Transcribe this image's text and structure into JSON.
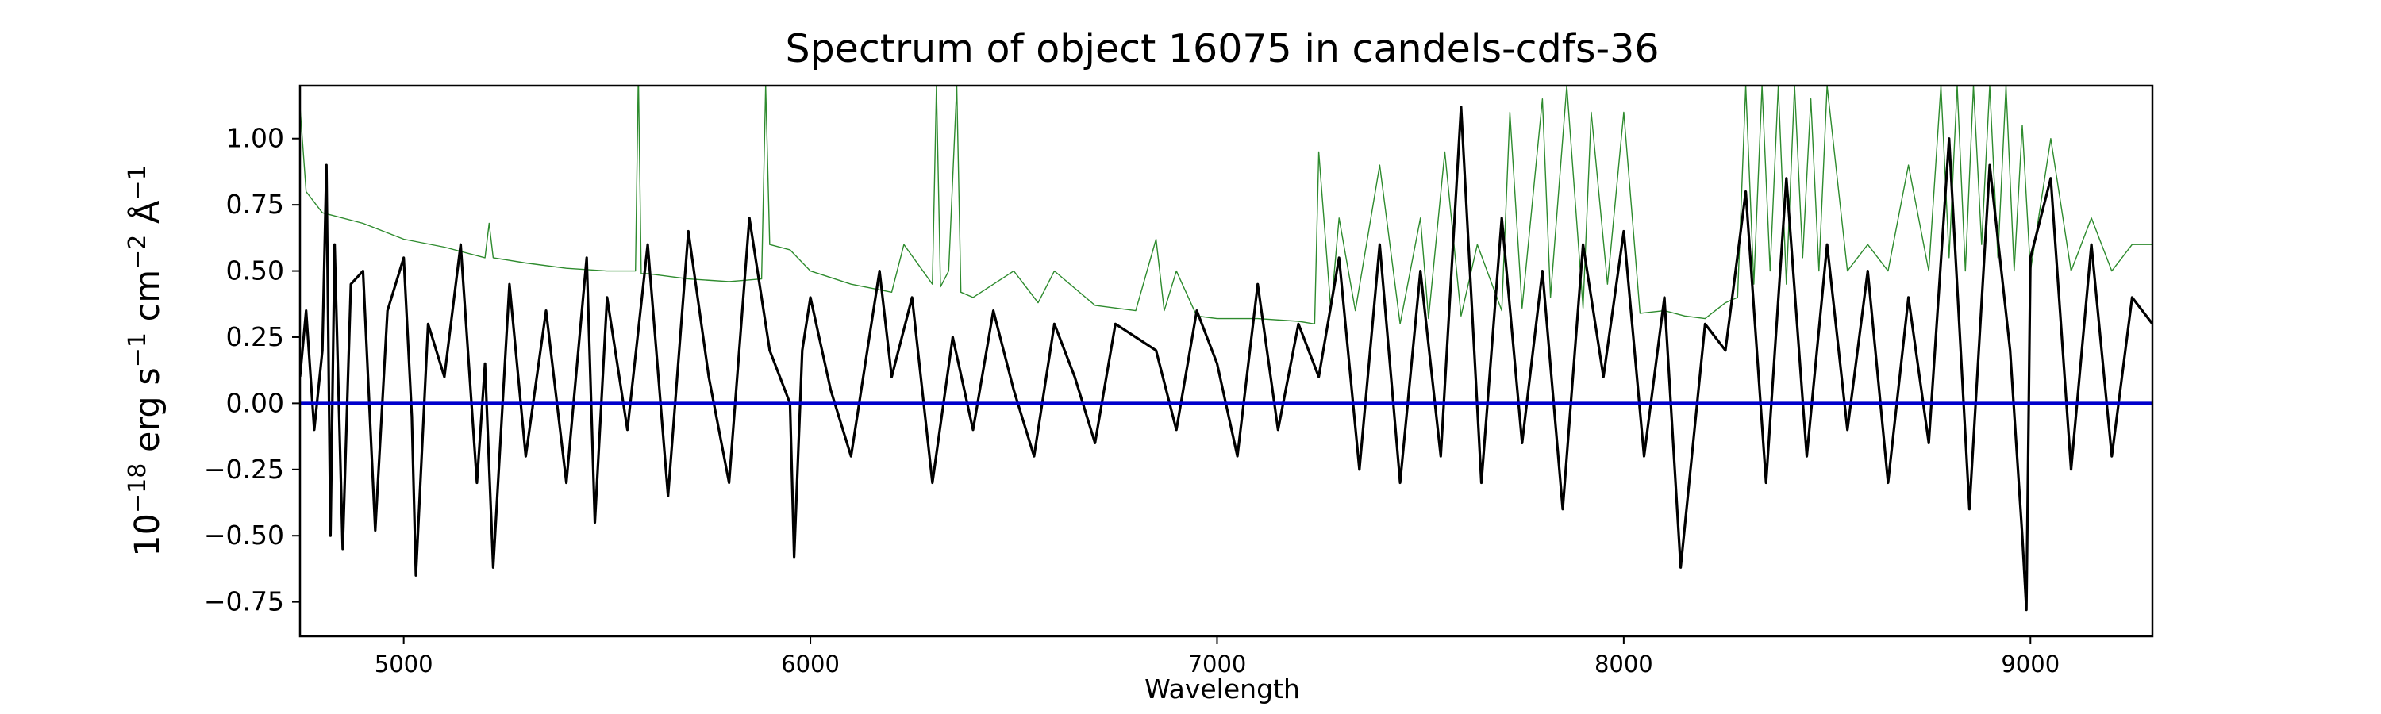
{
  "chart_data": {
    "type": "line",
    "title": "Spectrum of object 16075 in candels-cdfs-36",
    "xlabel": "Wavelength",
    "ylabel": "10^-18 erg s^-1 cm^-2 Å^-1",
    "xlim": [
      4745,
      9300
    ],
    "ylim": [
      -0.88,
      1.2
    ],
    "xticks": [
      5000,
      6000,
      7000,
      8000,
      9000
    ],
    "yticks": [
      -0.75,
      -0.5,
      -0.25,
      0.0,
      0.25,
      0.5,
      0.75,
      1.0
    ],
    "ytick_labels": [
      "−0.75",
      "−0.50",
      "−0.25",
      "0.00",
      "0.25",
      "0.50",
      "0.75",
      "1.00"
    ],
    "xtick_labels": [
      "5000",
      "6000",
      "7000",
      "8000",
      "9000"
    ],
    "grid": false,
    "series": [
      {
        "color": "#2e8b2e",
        "x": [
          4745,
          4760,
          4800,
          4900,
          5000,
          5100,
          5200,
          5210,
          5220,
          5300,
          5400,
          5500,
          5570,
          5577,
          5584,
          5600,
          5700,
          5800,
          5880,
          5890,
          5900,
          5950,
          6000,
          6100,
          6200,
          6230,
          6300,
          6310,
          6320,
          6340,
          6360,
          6370,
          6400,
          6500,
          6560,
          6600,
          6700,
          6800,
          6850,
          6870,
          6900,
          6950,
          7000,
          7100,
          7200,
          7240,
          7250,
          7280,
          7300,
          7340,
          7400,
          7450,
          7500,
          7520,
          7560,
          7600,
          7640,
          7700,
          7720,
          7750,
          7800,
          7820,
          7860,
          7900,
          7920,
          7960,
          8000,
          8040,
          8100,
          8150,
          8200,
          8250,
          8280,
          8300,
          8320,
          8340,
          8360,
          8380,
          8400,
          8420,
          8440,
          8460,
          8480,
          8500,
          8550,
          8600,
          8650,
          8700,
          8750,
          8780,
          8800,
          8820,
          8840,
          8860,
          8880,
          8900,
          8920,
          8940,
          8960,
          8980,
          9000,
          9050,
          9100,
          9150,
          9200,
          9250,
          9300
        ],
        "y": [
          1.12,
          0.8,
          0.72,
          0.68,
          0.62,
          0.59,
          0.55,
          0.68,
          0.55,
          0.53,
          0.51,
          0.5,
          0.5,
          1.25,
          0.49,
          0.49,
          0.47,
          0.46,
          0.47,
          1.2,
          0.6,
          0.58,
          0.5,
          0.45,
          0.42,
          0.6,
          0.45,
          1.2,
          0.44,
          0.5,
          1.2,
          0.42,
          0.4,
          0.5,
          0.38,
          0.5,
          0.37,
          0.35,
          0.62,
          0.35,
          0.5,
          0.33,
          0.32,
          0.32,
          0.31,
          0.3,
          0.95,
          0.35,
          0.7,
          0.35,
          0.9,
          0.3,
          0.7,
          0.32,
          0.95,
          0.33,
          0.6,
          0.35,
          1.1,
          0.36,
          1.15,
          0.4,
          1.2,
          0.36,
          1.1,
          0.45,
          1.1,
          0.34,
          0.35,
          0.33,
          0.32,
          0.38,
          0.4,
          1.2,
          0.45,
          1.2,
          0.5,
          1.2,
          0.45,
          1.2,
          0.55,
          1.15,
          0.5,
          1.2,
          0.5,
          0.6,
          0.5,
          0.9,
          0.5,
          1.2,
          0.55,
          1.2,
          0.5,
          1.2,
          0.6,
          1.2,
          0.55,
          1.2,
          0.5,
          1.05,
          0.5,
          1.0,
          0.5,
          0.7,
          0.5,
          0.6,
          0.6
        ]
      },
      {
        "color": "#000000",
        "x": [
          4745,
          4760,
          4780,
          4800,
          4810,
          4820,
          4830,
          4850,
          4870,
          4900,
          4930,
          4960,
          5000,
          5020,
          5030,
          5060,
          5100,
          5140,
          5180,
          5200,
          5220,
          5260,
          5300,
          5350,
          5400,
          5450,
          5470,
          5500,
          5550,
          5600,
          5650,
          5700,
          5750,
          5800,
          5850,
          5900,
          5950,
          5960,
          5980,
          6000,
          6050,
          6100,
          6150,
          6170,
          6200,
          6250,
          6300,
          6350,
          6400,
          6450,
          6500,
          6550,
          6600,
          6650,
          6700,
          6750,
          6800,
          6850,
          6900,
          6950,
          7000,
          7050,
          7100,
          7150,
          7200,
          7250,
          7300,
          7350,
          7400,
          7450,
          7500,
          7550,
          7600,
          7650,
          7700,
          7750,
          7800,
          7850,
          7900,
          7950,
          8000,
          8050,
          8100,
          8140,
          8200,
          8250,
          8300,
          8350,
          8400,
          8450,
          8500,
          8550,
          8600,
          8650,
          8700,
          8750,
          8800,
          8850,
          8900,
          8950,
          8980,
          8990,
          9000,
          9050,
          9100,
          9150,
          9200,
          9250,
          9300
        ],
        "y": [
          0.1,
          0.35,
          -0.1,
          0.2,
          0.9,
          -0.5,
          0.6,
          -0.55,
          0.45,
          0.5,
          -0.48,
          0.35,
          0.55,
          -0.05,
          -0.65,
          0.3,
          0.1,
          0.6,
          -0.3,
          0.15,
          -0.62,
          0.45,
          -0.2,
          0.35,
          -0.3,
          0.55,
          -0.45,
          0.4,
          -0.1,
          0.6,
          -0.35,
          0.65,
          0.1,
          -0.3,
          0.7,
          0.2,
          0.0,
          -0.58,
          0.2,
          0.4,
          0.05,
          -0.2,
          0.3,
          0.5,
          0.1,
          0.4,
          -0.3,
          0.25,
          -0.1,
          0.35,
          0.05,
          -0.2,
          0.3,
          0.1,
          -0.15,
          0.3,
          0.25,
          0.2,
          -0.1,
          0.35,
          0.15,
          -0.2,
          0.45,
          -0.1,
          0.3,
          0.1,
          0.55,
          -0.25,
          0.6,
          -0.3,
          0.5,
          -0.2,
          1.12,
          -0.3,
          0.7,
          -0.15,
          0.5,
          -0.4,
          0.6,
          0.1,
          0.65,
          -0.2,
          0.4,
          -0.62,
          0.3,
          0.2,
          0.8,
          -0.3,
          0.85,
          -0.2,
          0.6,
          -0.1,
          0.5,
          -0.3,
          0.4,
          -0.15,
          1.0,
          -0.4,
          0.9,
          0.2,
          -0.5,
          -0.78,
          0.55,
          0.85,
          -0.25,
          0.6,
          -0.2,
          0.4,
          0.3
        ]
      },
      {
        "color": "#0000cc",
        "x": [
          4745,
          9300
        ],
        "y": [
          0.0,
          0.0
        ]
      }
    ]
  }
}
